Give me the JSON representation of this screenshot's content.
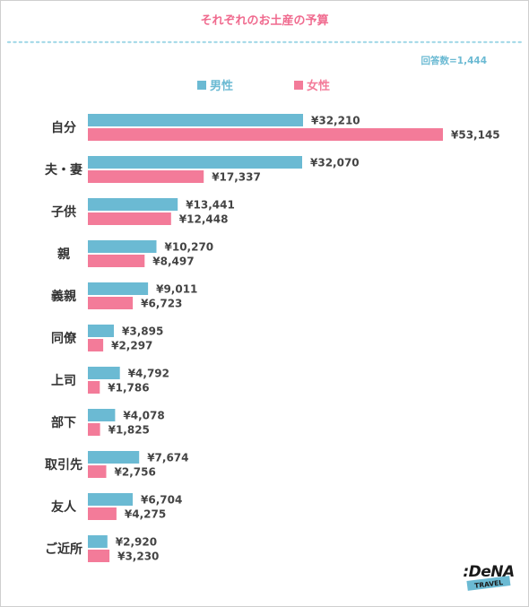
{
  "chart_data": {
    "type": "bar",
    "orientation": "horizontal",
    "title": "それぞれのお土産の予算",
    "note": "回答数=1,444",
    "legend_position": "top-center",
    "grid": false,
    "colors": {
      "男性": "#6bbad3",
      "女性": "#f37b99",
      "title": "#f06b8f",
      "note": "#6bbad3"
    },
    "categories": [
      "自分",
      "夫・妻",
      "子供",
      "親",
      "義親",
      "同僚",
      "上司",
      "部下",
      "取引先",
      "友人",
      "ご近所"
    ],
    "series": [
      {
        "name": "男性",
        "color": "#6bbad3",
        "values": [
          32210,
          32070,
          13441,
          10270,
          9011,
          3895,
          4792,
          4078,
          7674,
          6704,
          2920
        ],
        "labels": [
          "¥32,210",
          "¥32,070",
          "¥13,441",
          "¥10,270",
          "¥9,011",
          "¥3,895",
          "¥4,792",
          "¥4,078",
          "¥7,674",
          "¥6,704",
          "¥2,920"
        ]
      },
      {
        "name": "女性",
        "color": "#f37b99",
        "values": [
          53145,
          17337,
          12448,
          8497,
          6723,
          2297,
          1786,
          1825,
          2756,
          4275,
          3230
        ],
        "labels": [
          "¥53,145",
          "¥17,337",
          "¥12,448",
          "¥8,497",
          "¥6,723",
          "¥2,297",
          "¥1,786",
          "¥1,825",
          "¥2,756",
          "¥4,275",
          "¥3,230"
        ]
      }
    ]
  },
  "logo": {
    "brand": "DeNA",
    "sub": "TRAVEL",
    "colors": {
      "text": "#1a1a1a",
      "badge": "#6bbad3"
    }
  }
}
